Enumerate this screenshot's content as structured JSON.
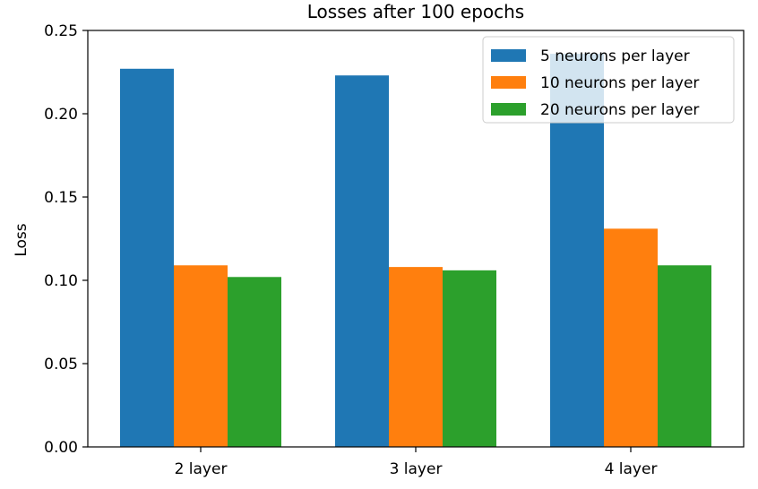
{
  "chart_data": {
    "type": "bar",
    "title": "Losses after 100 epochs",
    "xlabel": "",
    "ylabel": "Loss",
    "categories": [
      "2 layer",
      "3 layer",
      "4 layer"
    ],
    "series": [
      {
        "name": "5 neurons per layer",
        "color": "#1f77b4",
        "values": [
          0.227,
          0.223,
          0.236
        ]
      },
      {
        "name": "10 neurons per layer",
        "color": "#ff7f0e",
        "values": [
          0.109,
          0.108,
          0.131
        ]
      },
      {
        "name": "20 neurons per layer",
        "color": "#2ca02c",
        "values": [
          0.102,
          0.106,
          0.109
        ]
      }
    ],
    "ylim": [
      0,
      0.25
    ],
    "yticks": [
      "0.00",
      "0.05",
      "0.10",
      "0.15",
      "0.20",
      "0.25"
    ],
    "grid": false,
    "legend_position": "top-right"
  }
}
